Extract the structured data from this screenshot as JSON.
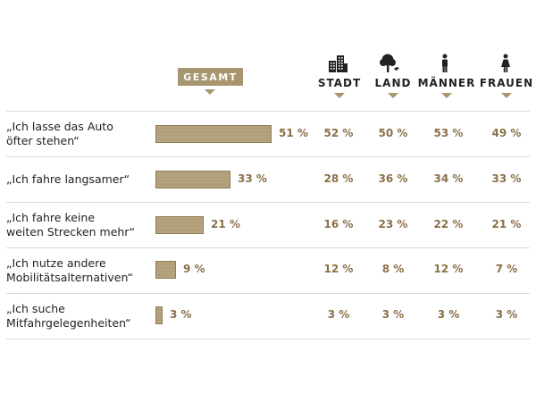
{
  "chart_data": {
    "type": "bar",
    "title": "",
    "xlabel": "",
    "ylabel": "",
    "xlim": [
      0,
      100
    ],
    "legend": "none",
    "grid": false,
    "highlight_series": "GESAMT",
    "categories": [
      "„Ich lasse das Auto öfter stehen“",
      "„Ich fahre langsamer“",
      "„Ich fahre keine weiten Strecken mehr“",
      "„Ich nutze andere Mobilitätsalternativen“",
      "„Ich suche Mitfahrgelegenheiten“"
    ],
    "series": [
      {
        "name": "GESAMT",
        "values": [
          51,
          33,
          21,
          9,
          3
        ],
        "icon": ""
      },
      {
        "name": "STADT",
        "values": [
          52,
          28,
          16,
          12,
          3
        ],
        "icon": "city-buildings-icon"
      },
      {
        "name": "LAND",
        "values": [
          50,
          36,
          23,
          8,
          3
        ],
        "icon": "tree-bird-icon"
      },
      {
        "name": "MÄNNER",
        "values": [
          53,
          34,
          22,
          12,
          3
        ],
        "icon": "man-icon"
      },
      {
        "name": "FRAUEN",
        "values": [
          49,
          33,
          21,
          7,
          3
        ],
        "icon": "woman-icon"
      }
    ],
    "row_labels": [
      [
        "„Ich lasse das Auto",
        "öfter stehen“"
      ],
      [
        "„Ich fahre langsamer“"
      ],
      [
        "„Ich fahre keine",
        "weiten Strecken mehr“"
      ],
      [
        "„Ich nutze andere",
        "Mobilitätsalternativen“"
      ],
      [
        "„Ich suche",
        "Mitfahrgelegenheiten“"
      ]
    ],
    "value_suffix": " %"
  },
  "colors": {
    "bar_fill": "#b4a37e",
    "bar_border": "#8f7d55",
    "accent": "#a89670",
    "value_text": "#8a7048",
    "label_text": "#222222",
    "separator": "#d9d9d9"
  }
}
